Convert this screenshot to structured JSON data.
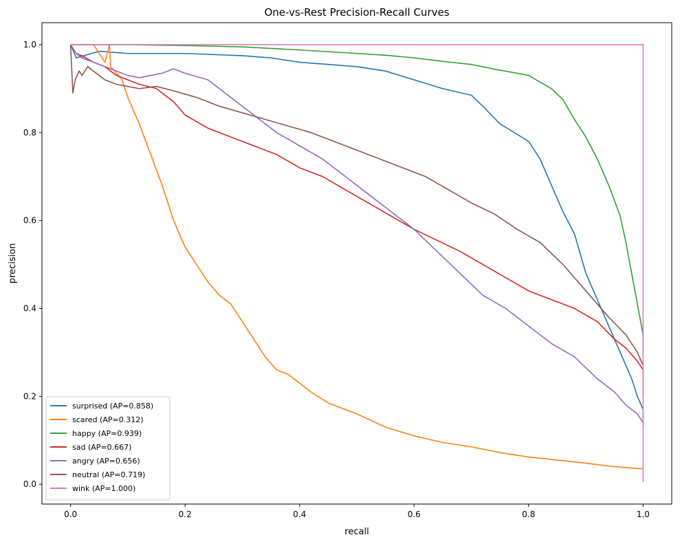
{
  "chart_data": {
    "type": "line",
    "title": "One-vs-Rest Precision-Recall Curves",
    "xlabel": "recall",
    "ylabel": "precision",
    "xlim": [
      -0.05,
      1.05
    ],
    "ylim": [
      -0.045,
      1.05
    ],
    "xticks": [
      0.0,
      0.2,
      0.4,
      0.6,
      0.8,
      1.0
    ],
    "xtick_labels": [
      "0.0",
      "0.2",
      "0.4",
      "0.6",
      "0.8",
      "1.0"
    ],
    "yticks": [
      0.0,
      0.2,
      0.4,
      0.6,
      0.8,
      1.0
    ],
    "ytick_labels": [
      "0.0",
      "0.2",
      "0.4",
      "0.6",
      "0.8",
      "1.0"
    ],
    "grid": false,
    "legend_position": "lower-left",
    "series": [
      {
        "name": "surprised (AP=0.858)",
        "color": "#1f77b4",
        "x": [
          0.0,
          0.01,
          0.05,
          0.1,
          0.2,
          0.3,
          0.35,
          0.4,
          0.45,
          0.5,
          0.55,
          0.6,
          0.65,
          0.7,
          0.72,
          0.75,
          0.8,
          0.82,
          0.84,
          0.86,
          0.88,
          0.9,
          0.92,
          0.94,
          0.96,
          0.98,
          0.99,
          1.0,
          1.0
        ],
        "y": [
          1.0,
          0.97,
          0.985,
          0.98,
          0.98,
          0.975,
          0.97,
          0.96,
          0.955,
          0.95,
          0.94,
          0.92,
          0.9,
          0.885,
          0.86,
          0.82,
          0.78,
          0.74,
          0.68,
          0.62,
          0.57,
          0.48,
          0.42,
          0.36,
          0.3,
          0.24,
          0.2,
          0.17,
          0.13
        ]
      },
      {
        "name": "scared (AP=0.312)",
        "color": "#ff7f0e",
        "x": [
          0.0,
          0.02,
          0.04,
          0.06,
          0.068,
          0.07,
          0.09,
          0.1,
          0.12,
          0.14,
          0.16,
          0.18,
          0.2,
          0.22,
          0.24,
          0.26,
          0.28,
          0.3,
          0.32,
          0.34,
          0.36,
          0.38,
          0.4,
          0.42,
          0.45,
          0.5,
          0.55,
          0.6,
          0.65,
          0.7,
          0.75,
          0.8,
          0.85,
          0.9,
          0.95,
          1.0
        ],
        "y": [
          1.0,
          1.0,
          1.0,
          0.96,
          1.0,
          0.95,
          0.92,
          0.88,
          0.82,
          0.75,
          0.68,
          0.6,
          0.54,
          0.5,
          0.46,
          0.43,
          0.41,
          0.37,
          0.33,
          0.29,
          0.26,
          0.25,
          0.23,
          0.21,
          0.185,
          0.16,
          0.13,
          0.11,
          0.095,
          0.085,
          0.072,
          0.062,
          0.055,
          0.048,
          0.04,
          0.035
        ]
      },
      {
        "name": "happy (AP=0.939)",
        "color": "#2ca02c",
        "x": [
          0.0,
          0.1,
          0.2,
          0.3,
          0.4,
          0.5,
          0.55,
          0.6,
          0.65,
          0.7,
          0.75,
          0.78,
          0.8,
          0.82,
          0.84,
          0.86,
          0.88,
          0.9,
          0.92,
          0.94,
          0.96,
          0.97,
          0.98,
          0.99,
          1.0,
          1.0
        ],
        "y": [
          1.0,
          1.0,
          0.998,
          0.995,
          0.988,
          0.98,
          0.976,
          0.97,
          0.962,
          0.955,
          0.942,
          0.935,
          0.93,
          0.915,
          0.9,
          0.875,
          0.83,
          0.79,
          0.74,
          0.68,
          0.61,
          0.55,
          0.48,
          0.41,
          0.34,
          0.3
        ]
      },
      {
        "name": "sad (AP=0.667)",
        "color": "#d62728",
        "x": [
          0.0,
          0.005,
          0.01,
          0.02,
          0.04,
          0.06,
          0.08,
          0.1,
          0.12,
          0.15,
          0.18,
          0.2,
          0.24,
          0.28,
          0.32,
          0.36,
          0.4,
          0.44,
          0.48,
          0.52,
          0.56,
          0.6,
          0.64,
          0.68,
          0.72,
          0.76,
          0.8,
          0.84,
          0.88,
          0.92,
          0.95,
          0.97,
          0.99,
          1.0,
          1.0
        ],
        "y": [
          1.0,
          0.99,
          0.98,
          0.975,
          0.96,
          0.95,
          0.93,
          0.92,
          0.91,
          0.9,
          0.87,
          0.84,
          0.81,
          0.79,
          0.77,
          0.75,
          0.72,
          0.7,
          0.67,
          0.64,
          0.61,
          0.58,
          0.555,
          0.53,
          0.5,
          0.47,
          0.44,
          0.42,
          0.4,
          0.37,
          0.33,
          0.31,
          0.28,
          0.26,
          0.2
        ]
      },
      {
        "name": "angry (AP=0.656)",
        "color": "#9467bd",
        "x": [
          0.0,
          0.01,
          0.02,
          0.04,
          0.06,
          0.08,
          0.1,
          0.12,
          0.14,
          0.16,
          0.18,
          0.2,
          0.24,
          0.28,
          0.32,
          0.36,
          0.4,
          0.44,
          0.48,
          0.52,
          0.56,
          0.6,
          0.64,
          0.68,
          0.72,
          0.76,
          0.8,
          0.84,
          0.88,
          0.92,
          0.95,
          0.97,
          0.99,
          1.0
        ],
        "y": [
          1.0,
          0.98,
          0.97,
          0.96,
          0.95,
          0.94,
          0.93,
          0.925,
          0.93,
          0.935,
          0.945,
          0.935,
          0.92,
          0.88,
          0.84,
          0.8,
          0.77,
          0.74,
          0.7,
          0.66,
          0.62,
          0.58,
          0.53,
          0.48,
          0.43,
          0.4,
          0.36,
          0.32,
          0.29,
          0.24,
          0.21,
          0.18,
          0.16,
          0.14
        ]
      },
      {
        "name": "neutral (AP=0.719)",
        "color": "#8c564b",
        "x": [
          0.0,
          0.004,
          0.008,
          0.015,
          0.02,
          0.03,
          0.04,
          0.06,
          0.08,
          0.1,
          0.12,
          0.15,
          0.18,
          0.22,
          0.26,
          0.3,
          0.34,
          0.38,
          0.42,
          0.46,
          0.5,
          0.54,
          0.58,
          0.62,
          0.66,
          0.7,
          0.74,
          0.78,
          0.82,
          0.86,
          0.9,
          0.94,
          0.97,
          0.99,
          1.0
        ],
        "y": [
          1.0,
          0.89,
          0.92,
          0.94,
          0.93,
          0.95,
          0.94,
          0.92,
          0.91,
          0.905,
          0.9,
          0.905,
          0.895,
          0.88,
          0.86,
          0.845,
          0.83,
          0.815,
          0.8,
          0.78,
          0.76,
          0.74,
          0.72,
          0.7,
          0.67,
          0.64,
          0.615,
          0.58,
          0.55,
          0.5,
          0.44,
          0.38,
          0.34,
          0.3,
          0.27
        ]
      },
      {
        "name": "wink (AP=1.000)",
        "color": "#e377c2",
        "x": [
          0.0,
          1.0,
          1.0
        ],
        "y": [
          1.0,
          1.0,
          0.005
        ]
      }
    ]
  }
}
